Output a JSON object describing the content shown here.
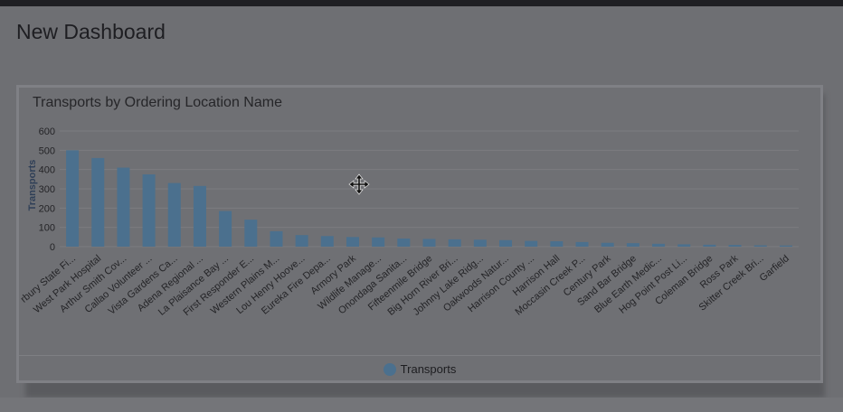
{
  "dashboard": {
    "title": "New Dashboard"
  },
  "widget": {
    "title": "Transports by Ordering Location Name"
  },
  "chart_data": {
    "type": "bar",
    "title": "Transports by Ordering Location Name",
    "xlabel": "",
    "ylabel": "Transports",
    "ylim": [
      0,
      600
    ],
    "yticks": [
      0,
      100,
      200,
      300,
      400,
      500,
      600
    ],
    "grid": true,
    "legend": "bottom-center",
    "bar_color": "#4b708e",
    "categories": [
      "rbury State Fi...",
      "West Park Hospital",
      "Arthur Smith Cov...",
      "Callao Volunteer ...",
      "Vista Gardens Ca...",
      "Adena Regional ...",
      "La Plaisance Bay ...",
      "First Responder E...",
      "Western Plains M...",
      "Lou Henry Hoove...",
      "Eureka Fire Depa...",
      "Armory Park",
      "Wildlife Manage...",
      "Onondaga Sanita...",
      "Fifteenmile Bridge",
      "Big Horn River Bri...",
      "Johnny Lake Ridg...",
      "Oakwoods Natur...",
      "Harrison County ...",
      "Harrison Hall",
      "Moccasin Creek P...",
      "Century Park",
      "Sand Bar Bridge",
      "Blue Earth Medic...",
      "Hog Point Post Li...",
      "Coleman Bridge",
      "Ross Park",
      "Skitter Creek Bri...",
      "Garfield"
    ],
    "series": [
      {
        "name": "Transports",
        "values": [
          500,
          460,
          410,
          375,
          330,
          315,
          185,
          140,
          80,
          60,
          55,
          50,
          48,
          42,
          40,
          38,
          36,
          34,
          30,
          28,
          24,
          20,
          18,
          15,
          12,
          10,
          9,
          7,
          6
        ]
      }
    ]
  }
}
